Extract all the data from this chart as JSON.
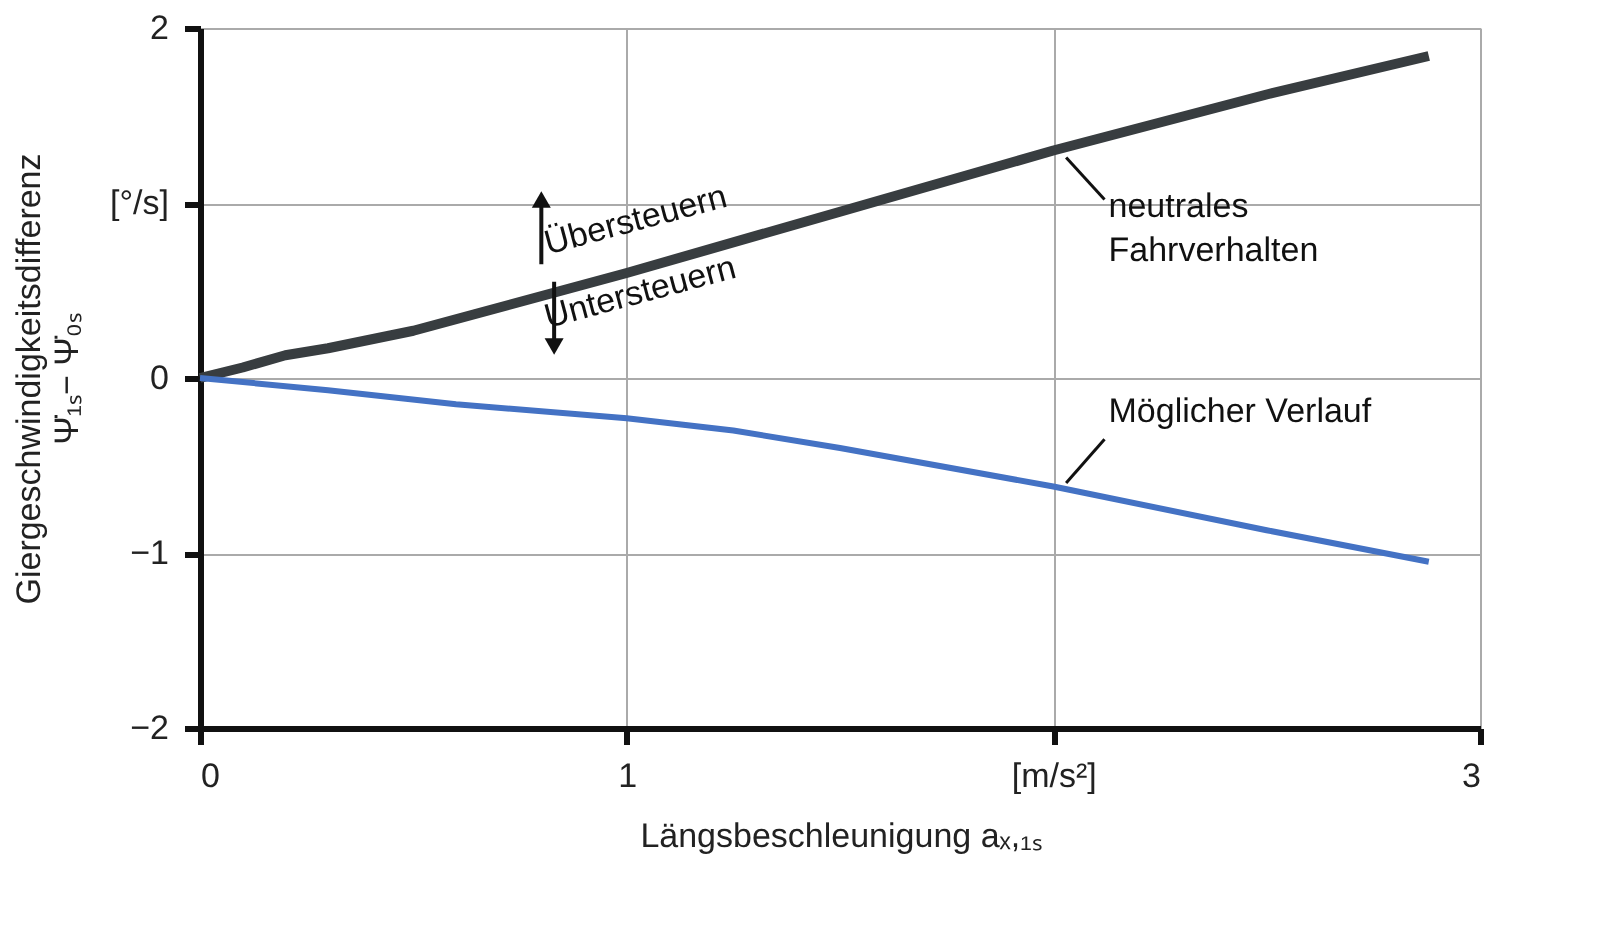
{
  "chart_data": {
    "type": "line",
    "xlabel": "Längsbeschleunigung aₓ,₁ₛ",
    "ylabel": "Giergeschwindigkeitsdifferenz\nΨ̇₁ₛ− Ψ̇₀ₛ",
    "xlim": [
      0,
      3
    ],
    "xticks": [
      0,
      1,
      {
        "value": 2,
        "label": "[m/s²]"
      },
      3
    ],
    "ylim": [
      -2,
      2
    ],
    "yticks": [
      -2,
      -1,
      0,
      {
        "value": 1,
        "label": "[°/s]"
      },
      2
    ],
    "grid": true,
    "legend": false,
    "line_style": "solid",
    "marker": "none",
    "series": [
      {
        "name": "neutrales Fahrverhalten",
        "color": "#383d40",
        "x": [
          0,
          0.1,
          0.2,
          0.3,
          0.5,
          1,
          1.5,
          2,
          2.5,
          2.88
        ],
        "values": [
          0,
          0.06,
          0.13,
          0.17,
          0.27,
          0.6,
          0.95,
          1.3,
          1.62,
          1.84
        ]
      },
      {
        "name": "Möglicher Verlauf",
        "color": "#4472c4",
        "x": [
          0,
          0.3,
          0.6,
          1,
          1.25,
          1.5,
          2,
          2.5,
          2.88
        ],
        "values": [
          0,
          -0.07,
          -0.15,
          -0.23,
          -0.3,
          -0.4,
          -0.62,
          -0.87,
          -1.05
        ]
      }
    ],
    "annotations": [
      {
        "text": "Übersteuern",
        "x": 0.9,
        "y": 0.6
      },
      {
        "text": "Untersteuern",
        "x": 0.9,
        "y": 0.6
      }
    ]
  }
}
